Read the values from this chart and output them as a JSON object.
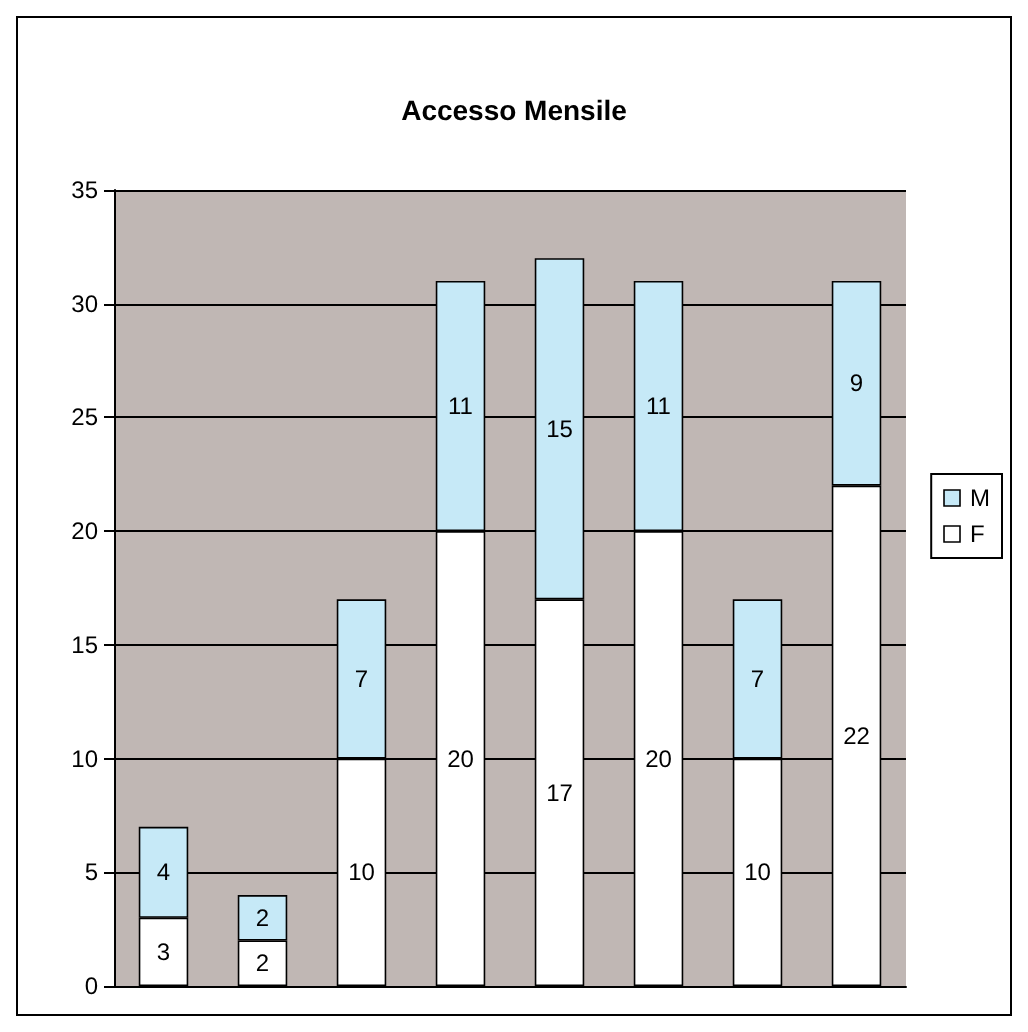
{
  "chart_data": {
    "type": "bar",
    "title": "Accesso Mensile",
    "stacked": true,
    "data_labels": true,
    "categories": [
      null,
      null,
      null,
      null,
      null,
      null,
      null,
      null
    ],
    "series": [
      {
        "name": "F",
        "color": "#ffffff",
        "values": [
          3,
          2,
          10,
          20,
          17,
          20,
          10,
          22
        ]
      },
      {
        "name": "M",
        "color": "#c6e9f7",
        "values": [
          4,
          2,
          7,
          11,
          15,
          11,
          7,
          9
        ]
      }
    ],
    "ylim": [
      0,
      35
    ],
    "yticks": [
      0,
      5,
      10,
      15,
      20,
      25,
      30,
      35
    ],
    "grid": "y",
    "legend": "right"
  }
}
